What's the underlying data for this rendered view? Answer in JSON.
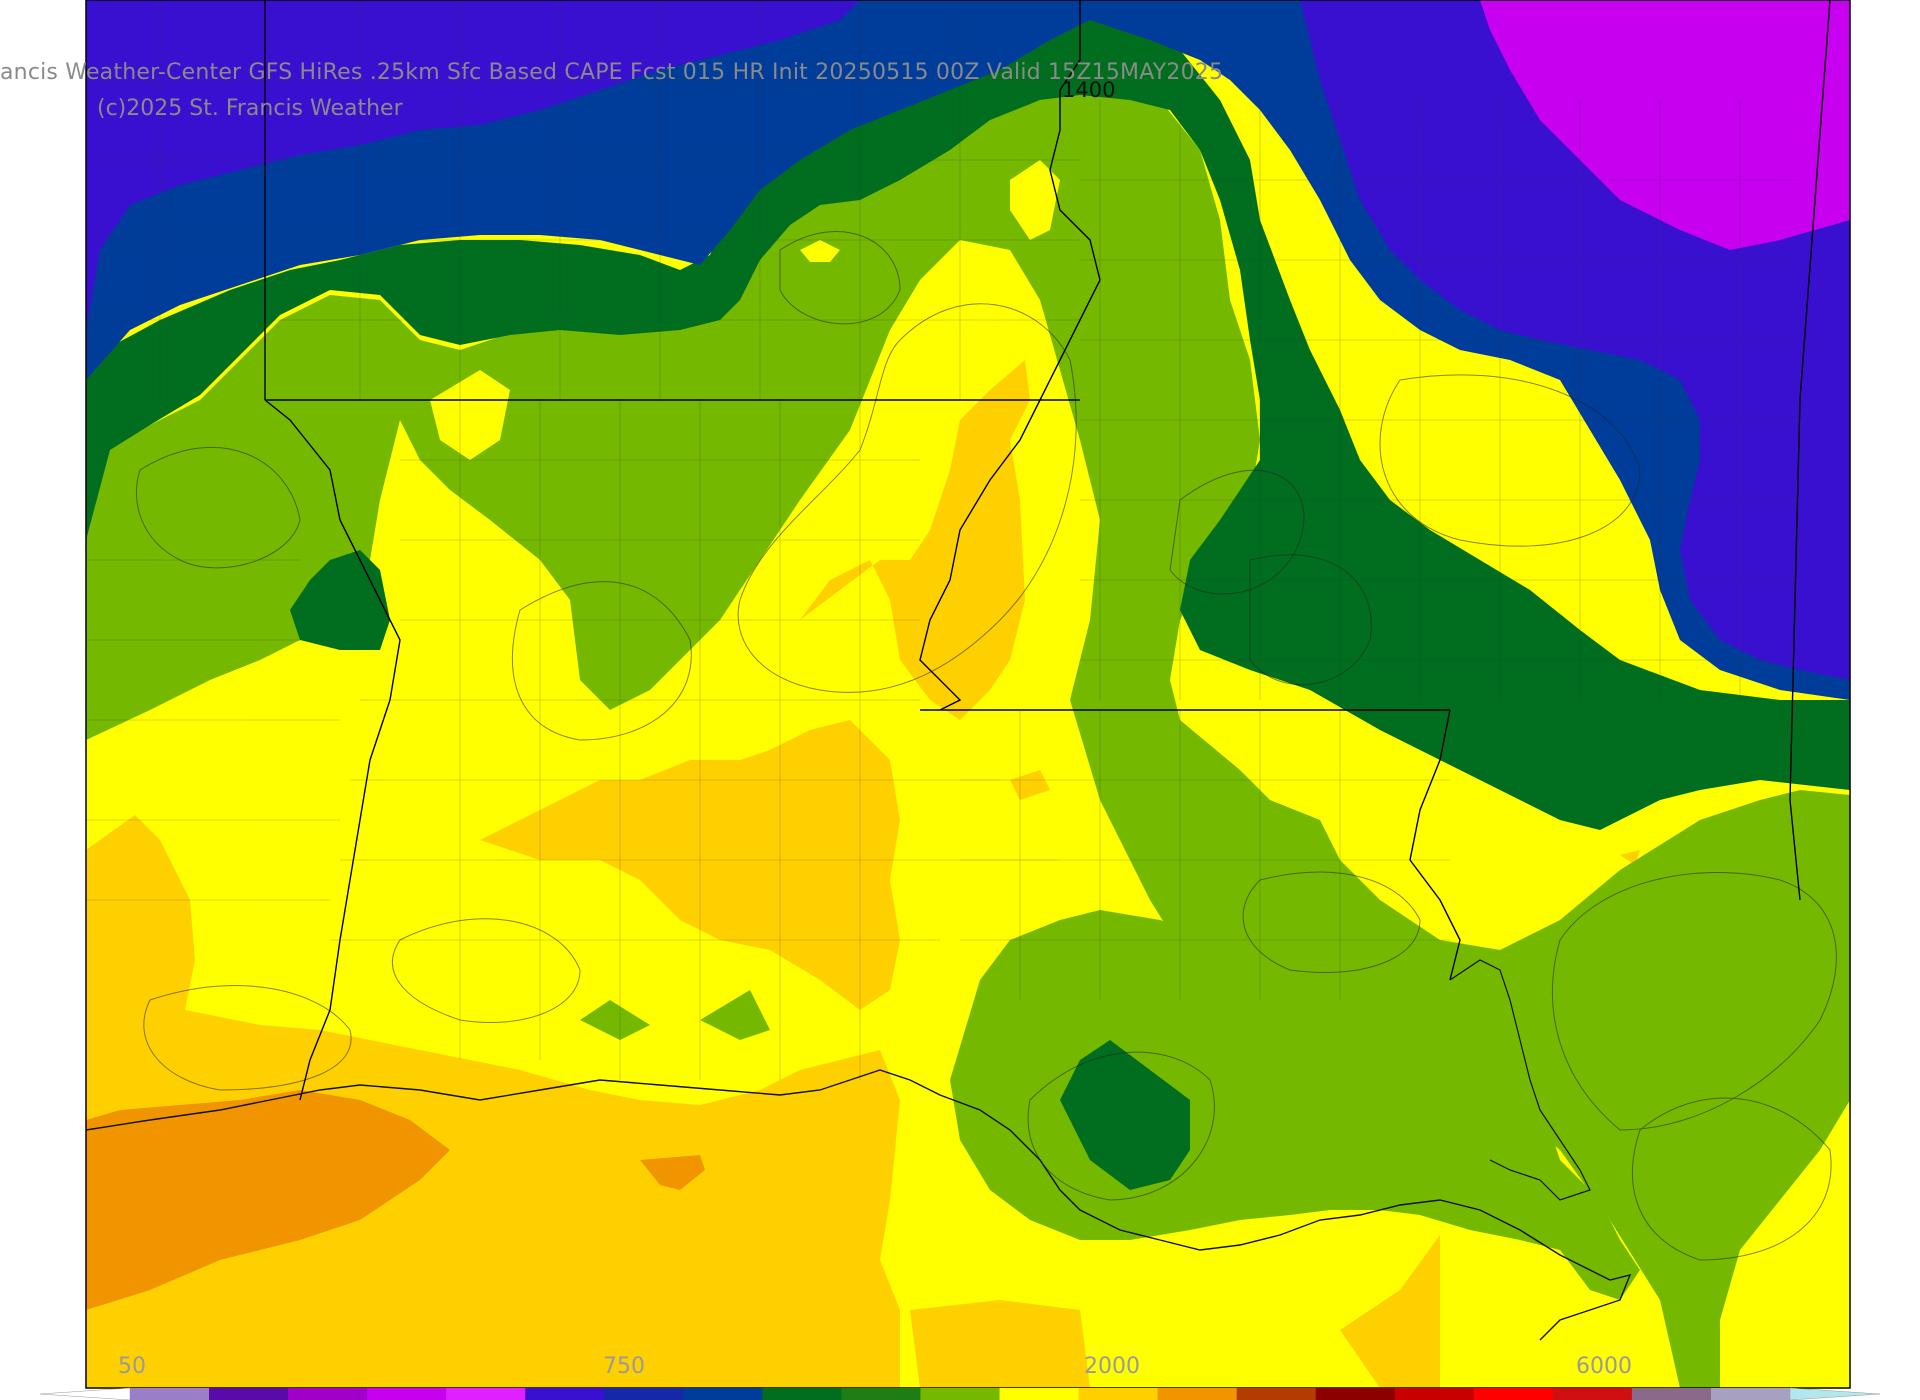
{
  "title": "ancis Weather-Center GFS HiRes .25km Sfc Based CAPE  Fcst 015 HR Init 20250515 00Z  Valid 15Z15MAY2025",
  "copyright": "(c)2025 St. Francis Weather",
  "contour_label": "1400",
  "colorbar": {
    "labels": [
      "50",
      "750",
      "2000",
      "6000"
    ],
    "colors": [
      "#ffffff",
      "#9a7fc8",
      "#5a0aa8",
      "#a000c8",
      "#c800f0",
      "#e020ff",
      "#3a10d0",
      "#1428a8",
      "#003c9a",
      "#006e1e",
      "#1e7d14",
      "#74b800",
      "#ffff00",
      "#ffd000",
      "#f09400",
      "#b43c00",
      "#8c0000",
      "#c80000",
      "#ff0000",
      "#d01010",
      "#8a6a8a",
      "#a8a0c0",
      "#b0e8ee"
    ]
  },
  "fill_colors": {
    "purple": "#3a10d0",
    "magenta": "#c800f0",
    "navy": "#003c9a",
    "dark_green": "#006e1e",
    "green": "#74b800",
    "yellow": "#ffff00",
    "gold": "#ffd000",
    "orange": "#f09400"
  }
}
